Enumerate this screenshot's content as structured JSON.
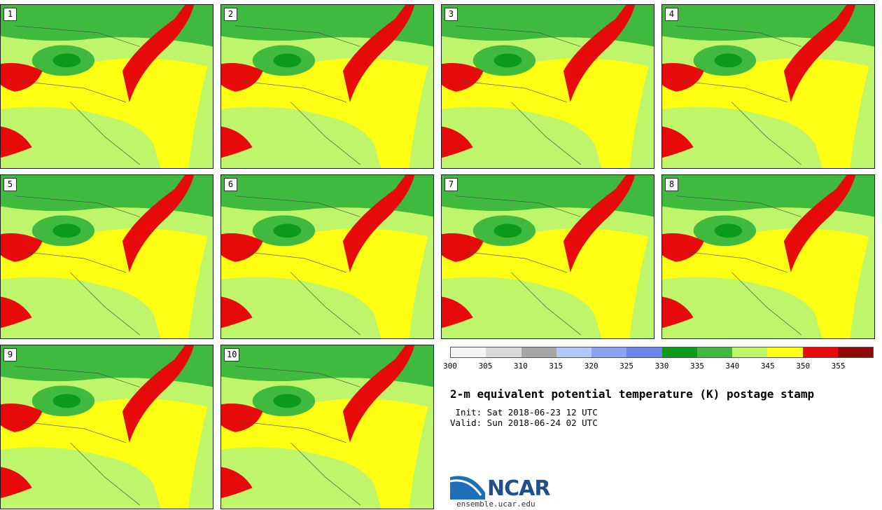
{
  "panels": [
    {
      "label": "1"
    },
    {
      "label": "2"
    },
    {
      "label": "3"
    },
    {
      "label": "4"
    },
    {
      "label": "5"
    },
    {
      "label": "6"
    },
    {
      "label": "7"
    },
    {
      "label": "8"
    },
    {
      "label": "9"
    },
    {
      "label": "10"
    }
  ],
  "colorbar": {
    "colors": [
      "#f4f4f4",
      "#d9d9d9",
      "#a6a6a6",
      "#b3c8fa",
      "#8aa3f4",
      "#6c84ec",
      "#0c9c1a",
      "#3fba3f",
      "#bef56a",
      "#ffff14",
      "#e60a0a",
      "#8c0a0a"
    ],
    "ticks": [
      "300",
      "305",
      "310",
      "315",
      "320",
      "325",
      "330",
      "335",
      "340",
      "345",
      "350",
      "355"
    ]
  },
  "title": "2-m equivalent potential temperature (K) postage stamp",
  "init": " Init: Sat 2018-06-23 12 UTC",
  "valid": "Valid: Sun 2018-06-24 02 UTC",
  "logo": {
    "text": "NCAR",
    "site": "ensemble.ucar.edu"
  }
}
